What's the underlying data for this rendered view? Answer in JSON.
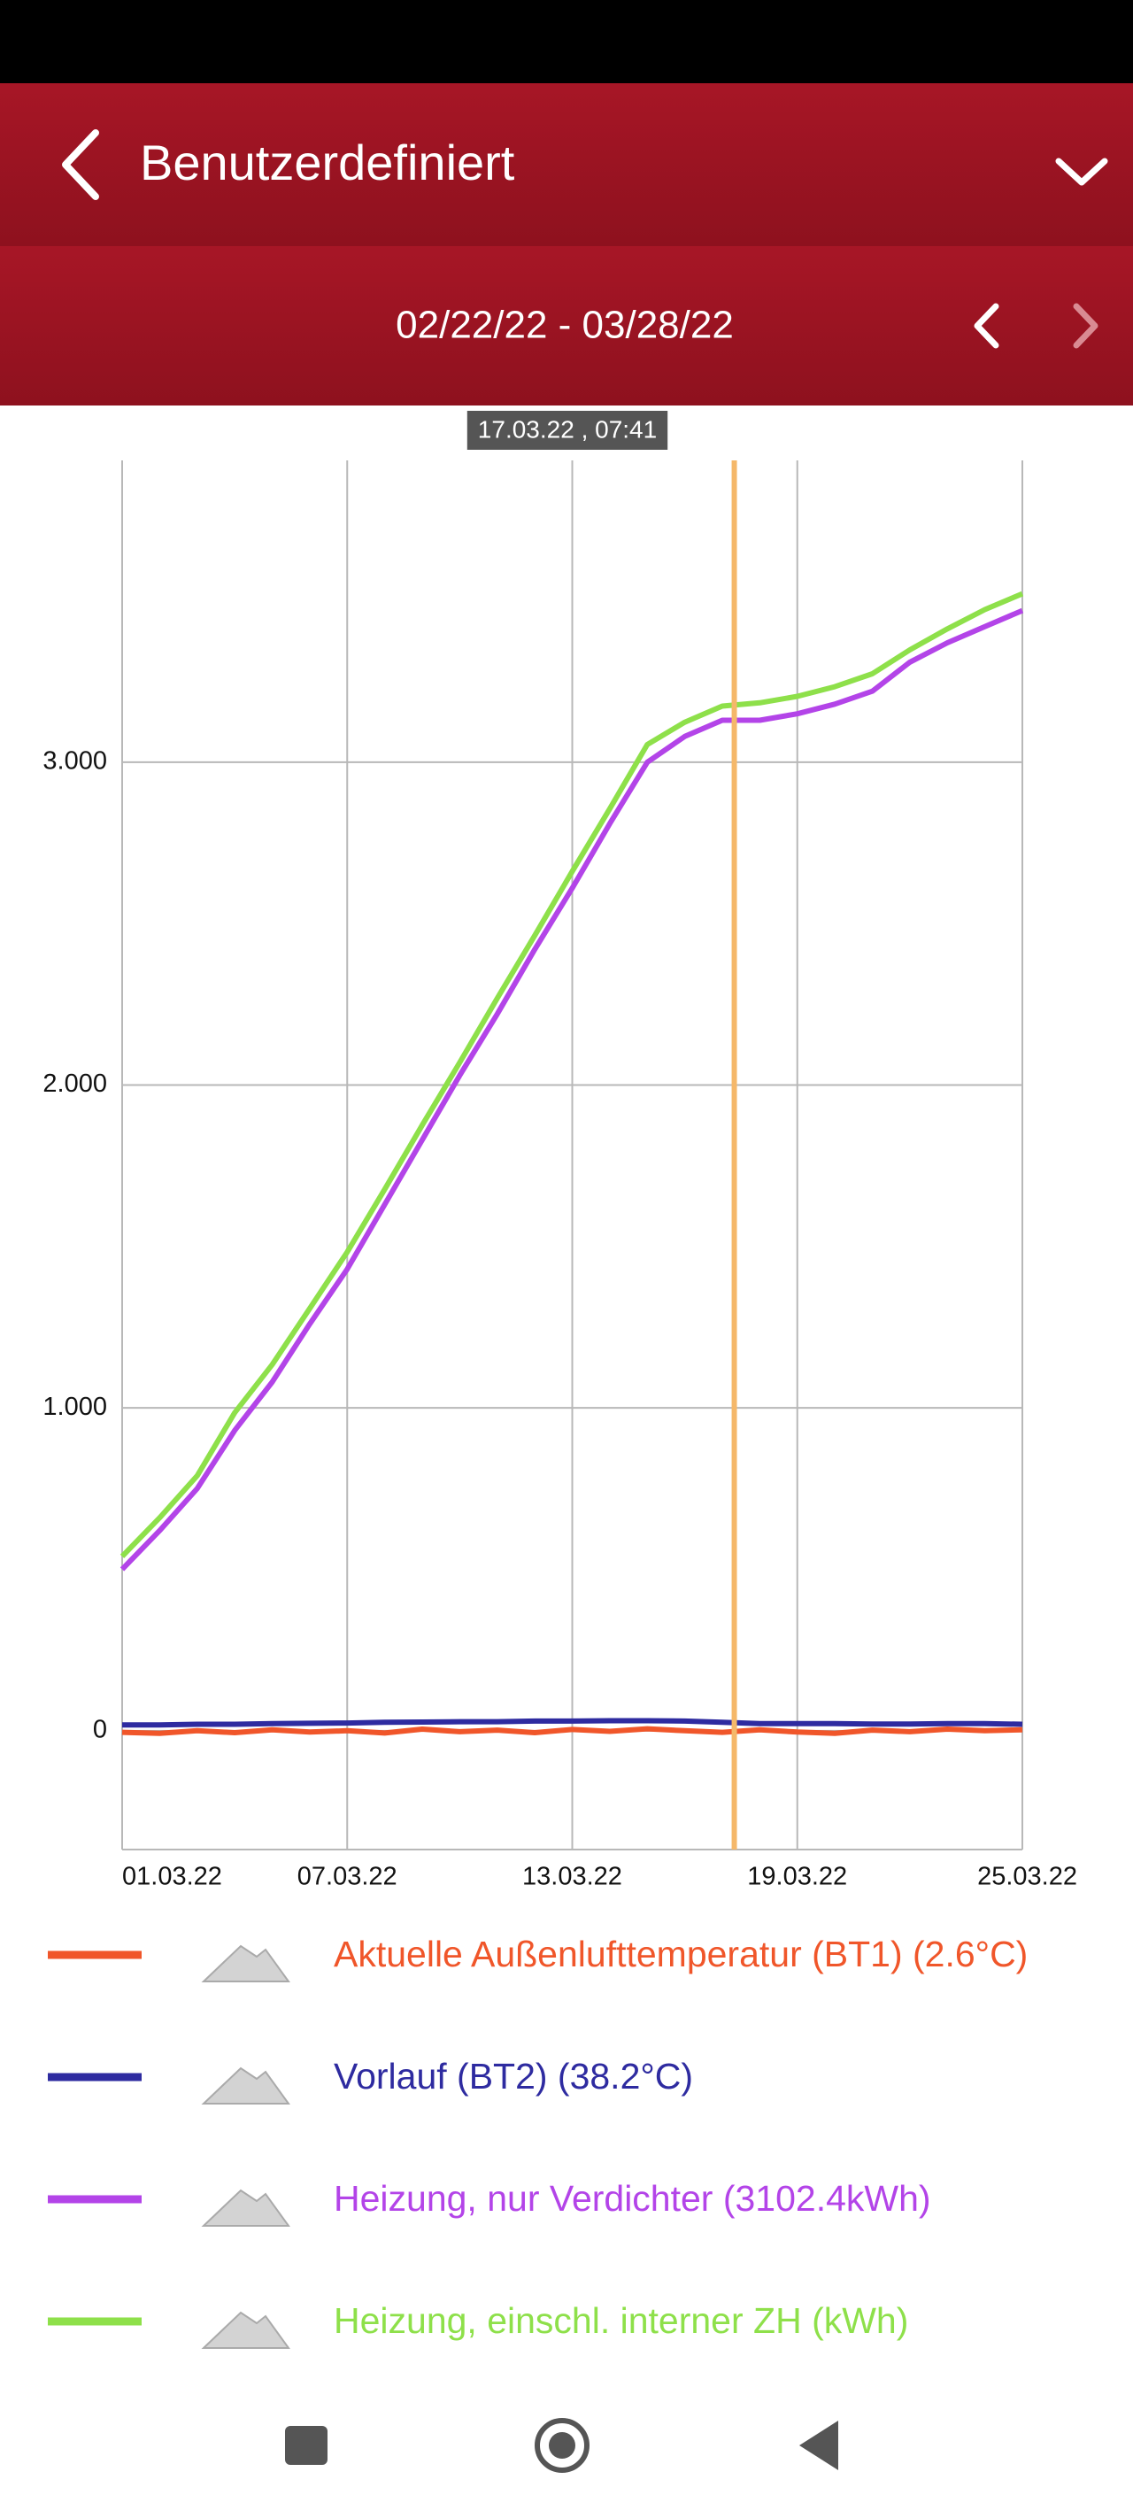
{
  "header": {
    "title": "Benutzerdefiniert",
    "date_range": "02/22/22 - 03/28/22"
  },
  "chart_data": {
    "type": "line",
    "x": [
      1,
      2,
      3,
      4,
      5,
      6,
      7,
      8,
      9,
      10,
      11,
      12,
      13,
      14,
      15,
      16,
      17,
      18,
      19,
      20,
      21,
      22,
      23,
      24,
      25
    ],
    "xlim": [
      1,
      25
    ],
    "xticks": [
      {
        "value": 1,
        "label": "01.03.22"
      },
      {
        "value": 7,
        "label": "07.03.22"
      },
      {
        "value": 13,
        "label": "13.03.22"
      },
      {
        "value": 19,
        "label": "19.03.22"
      },
      {
        "value": 25,
        "label": "25.03.22"
      }
    ],
    "ylim": [
      -368,
      3935
    ],
    "yticks": [
      0,
      {
        "value": 1000,
        "label": "1.000"
      },
      {
        "value": 2000,
        "label": "2.000"
      },
      {
        "value": 3000,
        "label": "3.000"
      }
    ],
    "grid": true,
    "cursor": {
      "x": 17.32,
      "label": "17.03.22 , 07:41",
      "color": "#f5b86a"
    },
    "series": [
      {
        "name": "Aktuelle Außenlufttemperatur (BT1) (2.6°C)",
        "color": "#f0562a",
        "values": [
          -5,
          -8,
          0,
          -6,
          3,
          -4,
          0,
          -7,
          5,
          -3,
          2,
          -6,
          4,
          -2,
          6,
          0,
          -5,
          3,
          -4,
          -8,
          2,
          -3,
          5,
          0,
          3
        ]
      },
      {
        "name": "Vorlauf (BT2) (38.2°C)",
        "color": "#2e2ba0",
        "values": [
          18,
          18,
          20,
          20,
          22,
          23,
          24,
          26,
          27,
          28,
          28,
          30,
          30,
          31,
          31,
          30,
          26,
          22,
          22,
          22,
          21,
          21,
          22,
          22,
          20
        ]
      },
      {
        "name": "Heizung, nur Verdichter (3102.4kWh)",
        "color": "#b344e8",
        "values": [
          500,
          620,
          750,
          930,
          1080,
          1260,
          1430,
          1630,
          1830,
          2030,
          2220,
          2420,
          2610,
          2810,
          3000,
          3080,
          3130,
          3130,
          3150,
          3180,
          3220,
          3310,
          3370,
          3420,
          3470
        ]
      },
      {
        "name": "Heizung, einschl. interner ZH (kWh)",
        "color": "#8ee04a",
        "values": [
          540,
          660,
          790,
          985,
          1134,
          1308,
          1483,
          1677,
          1876,
          2070,
          2269,
          2463,
          2662,
          2856,
          3055,
          3124,
          3174,
          3184,
          3204,
          3234,
          3274,
          3348,
          3413,
          3473,
          3522
        ]
      }
    ]
  }
}
